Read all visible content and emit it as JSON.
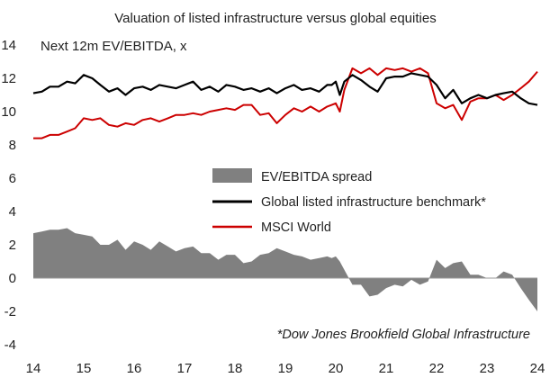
{
  "chart_data": {
    "type": "line",
    "title": "Valuation of listed infrastructure versus global equities",
    "ylabel": "Next 12m EV/EBITDA, x",
    "xlabel": "",
    "ylim": [
      -4,
      14
    ],
    "yticks": [
      "14",
      "12",
      "10",
      "8",
      "6",
      "4",
      "2",
      "0",
      "-2",
      "-4"
    ],
    "xticks": [
      "14",
      "15",
      "16",
      "17",
      "18",
      "19",
      "20",
      "21",
      "22",
      "23",
      "24"
    ],
    "x_range": [
      14,
      24
    ],
    "grid": false,
    "legend_position": "center",
    "footnote": "*Dow Jones Brookfield Global Infrastructure",
    "colors": {
      "spread": "#808080",
      "infra": "#000000",
      "msci": "#cc0000",
      "axis": "#999999"
    },
    "series": [
      {
        "name": "Global listed infrastructure benchmark*",
        "kind": "line",
        "points": [
          [
            14.0,
            11.1
          ],
          [
            14.17,
            11.2
          ],
          [
            14.33,
            11.5
          ],
          [
            14.5,
            11.5
          ],
          [
            14.67,
            11.8
          ],
          [
            14.83,
            11.7
          ],
          [
            15.0,
            12.2
          ],
          [
            15.17,
            12.0
          ],
          [
            15.33,
            11.6
          ],
          [
            15.5,
            11.2
          ],
          [
            15.67,
            11.4
          ],
          [
            15.83,
            11.0
          ],
          [
            16.0,
            11.4
          ],
          [
            16.17,
            11.5
          ],
          [
            16.33,
            11.3
          ],
          [
            16.5,
            11.6
          ],
          [
            16.67,
            11.5
          ],
          [
            16.83,
            11.4
          ],
          [
            17.0,
            11.6
          ],
          [
            17.17,
            11.8
          ],
          [
            17.33,
            11.3
          ],
          [
            17.5,
            11.5
          ],
          [
            17.67,
            11.2
          ],
          [
            17.83,
            11.6
          ],
          [
            18.0,
            11.5
          ],
          [
            18.17,
            11.3
          ],
          [
            18.33,
            11.4
          ],
          [
            18.5,
            11.2
          ],
          [
            18.67,
            11.4
          ],
          [
            18.83,
            11.1
          ],
          [
            19.0,
            11.4
          ],
          [
            19.17,
            11.6
          ],
          [
            19.33,
            11.3
          ],
          [
            19.5,
            11.4
          ],
          [
            19.67,
            11.2
          ],
          [
            19.83,
            11.6
          ],
          [
            19.92,
            11.6
          ],
          [
            20.0,
            11.8
          ],
          [
            20.08,
            11.0
          ],
          [
            20.17,
            11.8
          ],
          [
            20.33,
            12.2
          ],
          [
            20.5,
            11.9
          ],
          [
            20.67,
            11.5
          ],
          [
            20.83,
            11.2
          ],
          [
            21.0,
            12.0
          ],
          [
            21.17,
            12.1
          ],
          [
            21.33,
            12.1
          ],
          [
            21.5,
            12.3
          ],
          [
            21.67,
            12.2
          ],
          [
            21.83,
            12.1
          ],
          [
            22.0,
            11.6
          ],
          [
            22.17,
            10.8
          ],
          [
            22.33,
            11.3
          ],
          [
            22.5,
            10.5
          ],
          [
            22.67,
            10.8
          ],
          [
            22.83,
            11.0
          ],
          [
            23.0,
            10.8
          ],
          [
            23.17,
            11.0
          ],
          [
            23.33,
            11.1
          ],
          [
            23.5,
            11.2
          ],
          [
            23.67,
            10.8
          ],
          [
            23.83,
            10.5
          ],
          [
            24.0,
            10.4
          ]
        ]
      },
      {
        "name": "MSCI World",
        "kind": "line",
        "points": [
          [
            14.0,
            8.4
          ],
          [
            14.17,
            8.4
          ],
          [
            14.33,
            8.6
          ],
          [
            14.5,
            8.6
          ],
          [
            14.67,
            8.8
          ],
          [
            14.83,
            9.0
          ],
          [
            15.0,
            9.6
          ],
          [
            15.17,
            9.5
          ],
          [
            15.33,
            9.6
          ],
          [
            15.5,
            9.2
          ],
          [
            15.67,
            9.1
          ],
          [
            15.83,
            9.3
          ],
          [
            16.0,
            9.2
          ],
          [
            16.17,
            9.5
          ],
          [
            16.33,
            9.6
          ],
          [
            16.5,
            9.4
          ],
          [
            16.67,
            9.6
          ],
          [
            16.83,
            9.8
          ],
          [
            17.0,
            9.8
          ],
          [
            17.17,
            9.9
          ],
          [
            17.33,
            9.8
          ],
          [
            17.5,
            10.0
          ],
          [
            17.67,
            10.1
          ],
          [
            17.83,
            10.2
          ],
          [
            18.0,
            10.1
          ],
          [
            18.17,
            10.4
          ],
          [
            18.33,
            10.4
          ],
          [
            18.5,
            9.8
          ],
          [
            18.67,
            9.9
          ],
          [
            18.83,
            9.3
          ],
          [
            19.0,
            9.8
          ],
          [
            19.17,
            10.2
          ],
          [
            19.33,
            10.0
          ],
          [
            19.5,
            10.3
          ],
          [
            19.67,
            10.0
          ],
          [
            19.83,
            10.3
          ],
          [
            19.92,
            10.4
          ],
          [
            20.0,
            10.5
          ],
          [
            20.08,
            10.0
          ],
          [
            20.17,
            11.3
          ],
          [
            20.33,
            12.6
          ],
          [
            20.5,
            12.3
          ],
          [
            20.67,
            12.6
          ],
          [
            20.83,
            12.2
          ],
          [
            21.0,
            12.6
          ],
          [
            21.17,
            12.5
          ],
          [
            21.33,
            12.6
          ],
          [
            21.5,
            12.4
          ],
          [
            21.67,
            12.6
          ],
          [
            21.83,
            12.3
          ],
          [
            22.0,
            10.5
          ],
          [
            22.17,
            10.2
          ],
          [
            22.33,
            10.4
          ],
          [
            22.5,
            9.5
          ],
          [
            22.67,
            10.6
          ],
          [
            22.83,
            10.8
          ],
          [
            23.0,
            10.8
          ],
          [
            23.17,
            11.0
          ],
          [
            23.33,
            10.7
          ],
          [
            23.5,
            11.0
          ],
          [
            23.67,
            11.4
          ],
          [
            23.83,
            11.8
          ],
          [
            24.0,
            12.4
          ]
        ]
      },
      {
        "name": "EV/EBITDA spread",
        "kind": "area",
        "points": [
          [
            14.0,
            2.7
          ],
          [
            14.17,
            2.8
          ],
          [
            14.33,
            2.9
          ],
          [
            14.5,
            2.9
          ],
          [
            14.67,
            3.0
          ],
          [
            14.83,
            2.7
          ],
          [
            15.0,
            2.6
          ],
          [
            15.17,
            2.5
          ],
          [
            15.33,
            2.0
          ],
          [
            15.5,
            2.0
          ],
          [
            15.67,
            2.3
          ],
          [
            15.83,
            1.7
          ],
          [
            16.0,
            2.2
          ],
          [
            16.17,
            2.0
          ],
          [
            16.33,
            1.7
          ],
          [
            16.5,
            2.2
          ],
          [
            16.67,
            1.9
          ],
          [
            16.83,
            1.6
          ],
          [
            17.0,
            1.8
          ],
          [
            17.17,
            1.9
          ],
          [
            17.33,
            1.5
          ],
          [
            17.5,
            1.5
          ],
          [
            17.67,
            1.1
          ],
          [
            17.83,
            1.4
          ],
          [
            18.0,
            1.4
          ],
          [
            18.17,
            0.9
          ],
          [
            18.33,
            1.0
          ],
          [
            18.5,
            1.4
          ],
          [
            18.67,
            1.5
          ],
          [
            18.83,
            1.8
          ],
          [
            19.0,
            1.6
          ],
          [
            19.17,
            1.4
          ],
          [
            19.33,
            1.3
          ],
          [
            19.5,
            1.1
          ],
          [
            19.67,
            1.2
          ],
          [
            19.83,
            1.3
          ],
          [
            19.92,
            1.2
          ],
          [
            20.0,
            1.3
          ],
          [
            20.08,
            1.0
          ],
          [
            20.17,
            0.5
          ],
          [
            20.33,
            -0.4
          ],
          [
            20.5,
            -0.4
          ],
          [
            20.67,
            -1.1
          ],
          [
            20.83,
            -1.0
          ],
          [
            21.0,
            -0.6
          ],
          [
            21.17,
            -0.4
          ],
          [
            21.33,
            -0.5
          ],
          [
            21.5,
            -0.1
          ],
          [
            21.67,
            -0.4
          ],
          [
            21.83,
            -0.2
          ],
          [
            22.0,
            1.1
          ],
          [
            22.17,
            0.6
          ],
          [
            22.33,
            0.9
          ],
          [
            22.5,
            1.0
          ],
          [
            22.67,
            0.2
          ],
          [
            22.83,
            0.2
          ],
          [
            23.0,
            0.0
          ],
          [
            23.17,
            0.0
          ],
          [
            23.33,
            0.4
          ],
          [
            23.5,
            0.2
          ],
          [
            23.67,
            -0.6
          ],
          [
            23.83,
            -1.3
          ],
          [
            24.0,
            -2.0
          ]
        ]
      }
    ]
  }
}
